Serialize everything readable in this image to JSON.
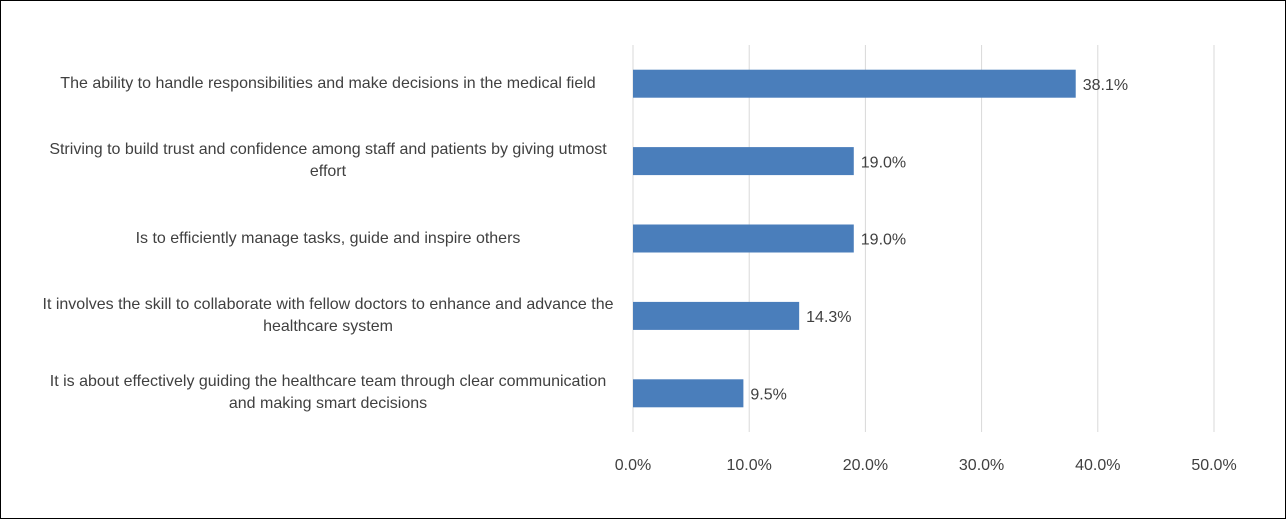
{
  "chart_data": {
    "type": "bar",
    "orientation": "horizontal",
    "categories": [
      "The ability to handle responsibilities and make decisions in the medical field",
      "Striving to build trust and confidence among staff and patients by giving utmost effort",
      "Is to efficiently manage tasks, guide and inspire others",
      "It involves the skill to collaborate with fellow doctors to enhance and advance the healthcare system",
      "It is about effectively guiding the healthcare team through clear communication and making smart decisions"
    ],
    "values": [
      38.1,
      19.0,
      19.0,
      14.3,
      9.5
    ],
    "value_labels": [
      "38.1%",
      "19.0%",
      "19.0%",
      "14.3%",
      "9.5%"
    ],
    "color": "#4a7ebb",
    "xlim": [
      0,
      50
    ],
    "xticks": [
      {
        "value": 0,
        "label": "0.0%"
      },
      {
        "value": 10,
        "label": "10.0%"
      },
      {
        "value": 20,
        "label": "20.0%"
      },
      {
        "value": 30,
        "label": "30.0%"
      },
      {
        "value": 40,
        "label": "40.0%"
      },
      {
        "value": 50,
        "label": "50.0%"
      }
    ],
    "grid": true
  }
}
